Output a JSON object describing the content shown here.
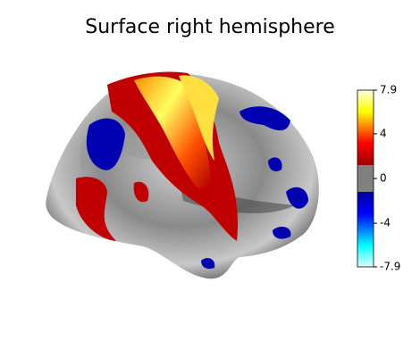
{
  "chart_data": {
    "type": "surface",
    "title": "Surface right hemisphere",
    "colorbar_lim": [
      -7.9,
      7.9
    ],
    "colorbar_ticks": [
      7.9,
      4,
      0,
      -4,
      -7.9
    ],
    "threshold": 1.2
  }
}
